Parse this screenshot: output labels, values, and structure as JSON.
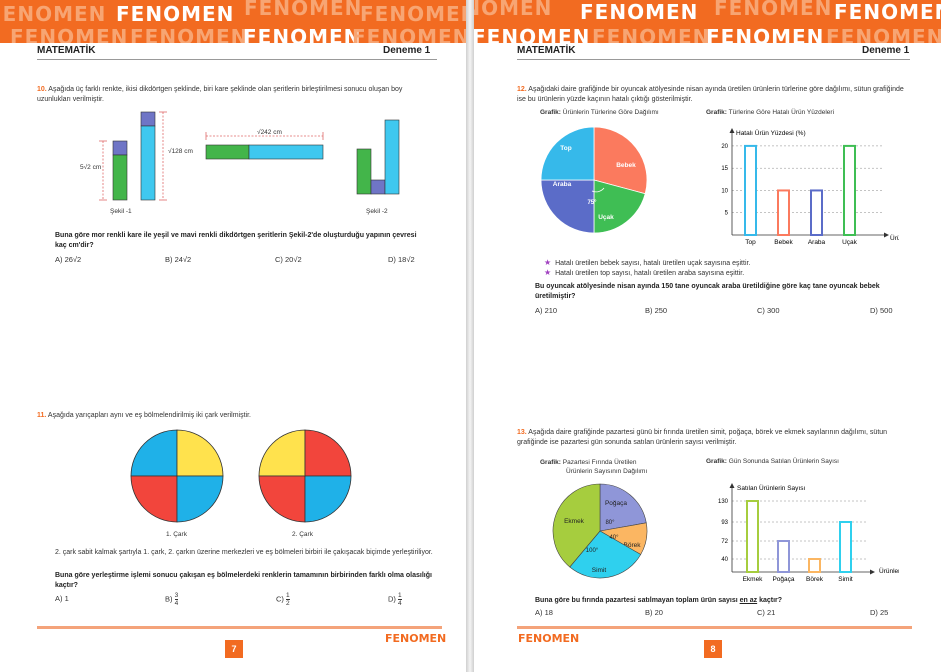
{
  "brand": "FENOMEN",
  "brand_logo": "FENOMEN",
  "left": {
    "subject": "MATEMATİK",
    "test": "Deneme 1",
    "page_number": "7",
    "q10": {
      "number": "10.",
      "text": "Aşağıda üç farklı renkte, ikisi dikdörtgen şeklinde, biri kare şeklinde olan şeritlerin birleştirilmesi sonucu oluşan boy uzunlukları verilmiştir.",
      "label_5r2": "5√2 cm",
      "label_128": "√128 cm",
      "label_242": "√242 cm",
      "sekil1": "Şekil -1",
      "sekil2": "Şekil -2",
      "question": "Buna göre mor renkli kare ile yeşil ve mavi renkli dikdörtgen şeritlerin Şekil-2'de oluşturduğu yapının çevresi kaç cm'dir?",
      "options": [
        "A) 26√2",
        "B) 24√2",
        "C) 20√2",
        "D) 18√2"
      ]
    },
    "q11": {
      "number": "11.",
      "text": "Aşağıda yarıçapları aynı ve eş bölmelendirilmiş iki çark verilmiştir.",
      "wheel1": "1. Çark",
      "wheel2": "2. Çark",
      "desc": "2. çark sabit kalmak şartıyla 1. çark, 2. çarkın üzerine merkezleri ve eş bölmeleri birbiri ile çakışacak biçimde yerleştiriliyor.",
      "question": "Buna göre yerleştirme işlemi sonucu çakışan eş bölmelerdeki renklerin tamamının birbirinden farklı olma olasılığı kaçtır?",
      "options": [
        {
          "prefix": "A)",
          "num": "1",
          "den": ""
        },
        {
          "prefix": "B)",
          "num": "3",
          "den": "4"
        },
        {
          "prefix": "C)",
          "num": "1",
          "den": "2"
        },
        {
          "prefix": "D)",
          "num": "1",
          "den": "4"
        }
      ]
    }
  },
  "right": {
    "subject": "MATEMATİK",
    "test": "Deneme 1",
    "page_number": "8",
    "q12": {
      "number": "12.",
      "text": "Aşağıdaki daire grafiğinde bir oyuncak atölyesinde nisan ayında üretilen ürünlerin türlerine göre dağılımı, sütun grafiğinde ise bu ürünlerin yüzde kaçının hatalı çıktığı gösterilmiştir.",
      "pie_caption_bold": "Grafik:",
      "pie_caption": "Ürünlerin Türlerine Göre Dağılımı",
      "bar_caption_bold": "Grafik:",
      "bar_caption": "Türlerine Göre Hatalı Ürün Yüzdeleri",
      "bullets": [
        "Hatalı üretilen bebek sayısı, hatalı üretilen uçak sayısına eşittir.",
        "Hatalı üretilen top sayısı, hatalı üretilen araba sayısına eşittir."
      ],
      "question": "Bu oyuncak atölyesinde nisan ayında 150 tane oyuncak araba üretildiğine göre kaç tane oyuncak bebek üretilmiştir?",
      "options": [
        "A) 210",
        "B) 250",
        "C) 300",
        "D) 500"
      ]
    },
    "q13": {
      "number": "13.",
      "text": "Aşağıda daire grafiğinde pazartesi günü bir fırında üretilen simit, poğaça, börek ve ekmek sayılarının dağılımı, sütun grafiğinde ise pazartesi gün sonunda satılan ürünlerin sayısı verilmiştir.",
      "pie_caption_bold": "Grafik:",
      "pie_caption_1": "Pazartesi Fırında Üretilen",
      "pie_caption_2": "Ürünlerin Sayısının Dağılımı",
      "bar_caption_bold": "Grafik:",
      "bar_caption": "Gün Sonunda Satılan Ürünlerin Sayısı",
      "question_pre": "Buna göre bu fırında pazartesi satılmayan toplam ürün sayısı ",
      "question_ul": "en az",
      "question_post": " kaçtır?",
      "options": [
        "A) 18",
        "B) 20",
        "C) 21",
        "D) 25"
      ]
    }
  },
  "chart_data": [
    {
      "type": "pie",
      "slices": [
        {
          "label": "Bebek",
          "degrees": 105,
          "color": "#fb7a5e"
        },
        {
          "label": "Uçak",
          "degrees": 75,
          "color": "#3fbe54"
        },
        {
          "label": "Araba",
          "degrees": 90,
          "color": "#5b6cc8"
        },
        {
          "label": "Top",
          "degrees": 90,
          "color": "#36b9ea"
        }
      ],
      "annotation": "75°"
    },
    {
      "type": "bar",
      "ylabel": "Hatalı Ürün Yüzdesi (%)",
      "xlabel": "Ürün",
      "categories": [
        "Top",
        "Bebek",
        "Araba",
        "Uçak"
      ],
      "values": [
        20,
        10,
        10,
        20
      ],
      "colors": [
        "#36b9ea",
        "#fb7a5e",
        "#5b6cc8",
        "#3fbe54"
      ],
      "yticks": [
        5,
        10,
        15,
        20
      ],
      "ylim": [
        0,
        22
      ],
      "grid": "dashed"
    },
    {
      "type": "pie",
      "slices": [
        {
          "label": "Poğaça",
          "degrees": 80,
          "color": "#8f96d8"
        },
        {
          "label": "Börek",
          "degrees": 40,
          "color": "#fbb662"
        },
        {
          "label": "Simit",
          "degrees": 100,
          "color": "#2fd0ee"
        },
        {
          "label": "Ekmek",
          "degrees": 140,
          "color": "#a6cd3e"
        }
      ],
      "angle_labels": [
        "80°",
        "40°",
        "100°"
      ]
    },
    {
      "type": "bar",
      "ylabel": "Satılan Ürünlerin Sayısı",
      "xlabel": "Ürünler",
      "categories": [
        "Ekmek",
        "Poğaça",
        "Börek",
        "Simit"
      ],
      "values": [
        130,
        72,
        40,
        93
      ],
      "colors": [
        "#a6cd3e",
        "#8f96d8",
        "#fbb662",
        "#2fd0ee"
      ],
      "yticks": [
        40,
        72,
        93,
        130
      ],
      "ylim": [
        0,
        140
      ],
      "grid": "dashed"
    }
  ]
}
